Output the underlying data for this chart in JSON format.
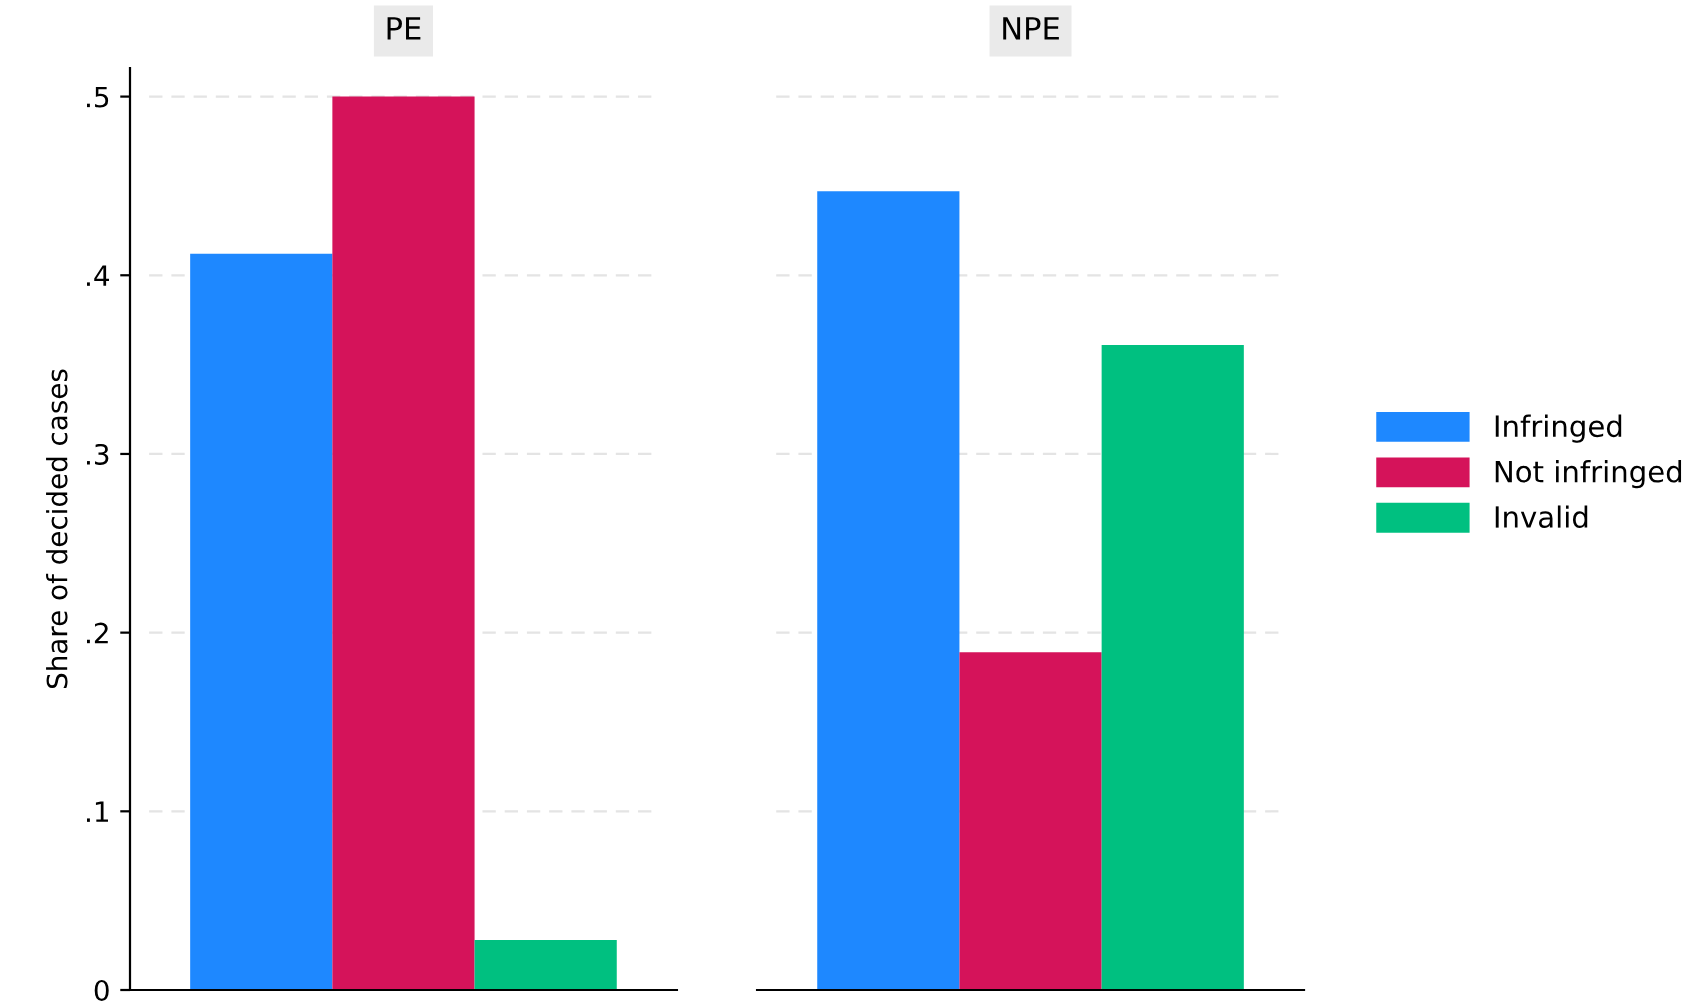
{
  "chart_data": {
    "type": "bar",
    "ylabel": "Share of decided cases",
    "categories": [
      "PE",
      "NPE"
    ],
    "series": [
      {
        "name": "Infringed",
        "color": "#1e88ff",
        "values": [
          0.412,
          0.447
        ]
      },
      {
        "name": "Not infringed",
        "color": "#d5135a",
        "values": [
          0.5,
          0.189
        ]
      },
      {
        "name": "Invalid",
        "color": "#00c080",
        "values": [
          0.028,
          0.361
        ]
      }
    ],
    "ylim": [
      0,
      0.516
    ],
    "yticks": [
      {
        "value": 0,
        "label": "0"
      },
      {
        "value": 0.1,
        "label": ".1"
      },
      {
        "value": 0.2,
        "label": ".2"
      },
      {
        "value": 0.3,
        "label": ".3"
      },
      {
        "value": 0.4,
        "label": ".4"
      },
      {
        "value": 0.5,
        "label": ".5"
      }
    ],
    "grid": "y",
    "legend": "right"
  }
}
